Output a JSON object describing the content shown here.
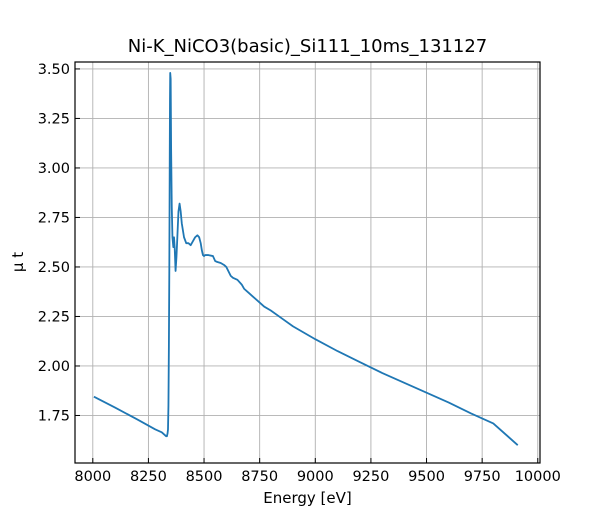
{
  "chart_data": {
    "type": "line",
    "title": "Ni-K_NiCO3(basic)_Si111_10ms_131127",
    "xlabel": "Energy [eV]",
    "ylabel": "μ t",
    "xlim": [
      7920,
      10010
    ],
    "ylim": [
      1.51,
      3.535
    ],
    "x_ticks": [
      8000,
      8250,
      8500,
      8750,
      9000,
      9250,
      9500,
      9750,
      10000
    ],
    "x_tick_labels": [
      "8000",
      "8250",
      "8500",
      "8750",
      "9000",
      "9250",
      "9500",
      "9750",
      "10000"
    ],
    "y_ticks": [
      1.75,
      2.0,
      2.25,
      2.5,
      2.75,
      3.0,
      3.25,
      3.5
    ],
    "y_tick_labels": [
      "1.75",
      "2.00",
      "2.25",
      "2.50",
      "2.75",
      "3.00",
      "3.25",
      "3.50"
    ],
    "grid": true,
    "series": [
      {
        "color": "#1f77b4",
        "x": [
          8005,
          8100,
          8200,
          8280,
          8310,
          8320,
          8330,
          8333,
          8336,
          8338,
          8340,
          8342,
          8344,
          8345,
          8346,
          8347,
          8348,
          8350,
          8352,
          8355,
          8358,
          8362,
          8365,
          8368,
          8372,
          8376,
          8380,
          8385,
          8390,
          8395,
          8400,
          8410,
          8420,
          8430,
          8440,
          8450,
          8460,
          8470,
          8478,
          8485,
          8490,
          8495,
          8500,
          8505,
          8520,
          8540,
          8550,
          8560,
          8575,
          8590,
          8600,
          8620,
          8630,
          8640,
          8650,
          8670,
          8680,
          8700,
          8720,
          8750,
          8770,
          8800,
          8850,
          8900,
          9000,
          9100,
          9200,
          9300,
          9400,
          9500,
          9600,
          9700,
          9800,
          9910
        ],
        "y": [
          1.845,
          1.79,
          1.73,
          1.68,
          1.665,
          1.655,
          1.645,
          1.645,
          1.66,
          1.68,
          1.8,
          2.1,
          2.5,
          2.8,
          3.1,
          3.35,
          3.48,
          3.45,
          3.1,
          2.8,
          2.65,
          2.6,
          2.65,
          2.6,
          2.48,
          2.55,
          2.65,
          2.78,
          2.82,
          2.78,
          2.72,
          2.65,
          2.62,
          2.62,
          2.61,
          2.63,
          2.65,
          2.66,
          2.65,
          2.62,
          2.585,
          2.56,
          2.555,
          2.56,
          2.56,
          2.555,
          2.53,
          2.525,
          2.52,
          2.51,
          2.5,
          2.455,
          2.445,
          2.44,
          2.435,
          2.41,
          2.39,
          2.37,
          2.35,
          2.32,
          2.3,
          2.28,
          2.24,
          2.2,
          2.135,
          2.075,
          2.02,
          1.965,
          1.915,
          1.865,
          1.815,
          1.76,
          1.71,
          1.6
        ]
      }
    ]
  }
}
